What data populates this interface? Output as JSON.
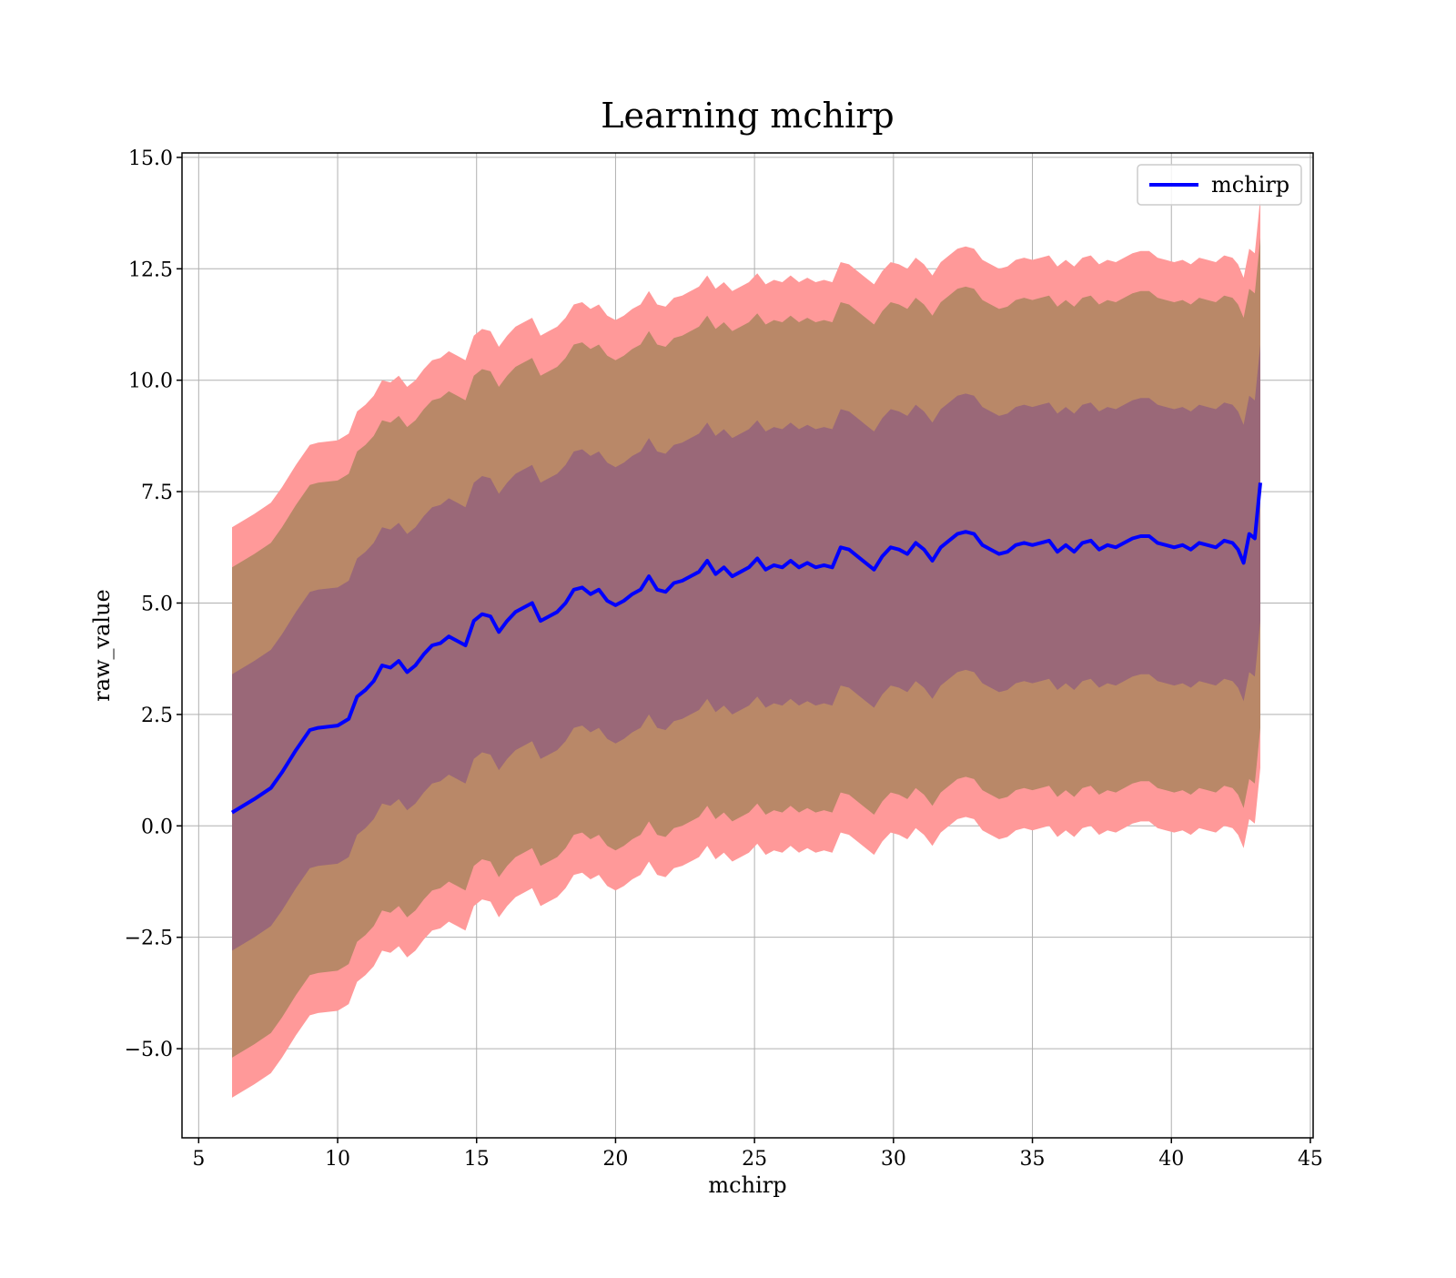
{
  "chart_data": {
    "type": "area",
    "title": "Learning mchirp",
    "xlabel": "mchirp",
    "ylabel": "raw_value",
    "xlim": [
      4.4,
      45.1
    ],
    "ylim": [
      -7.0,
      15.1
    ],
    "xticks": [
      5,
      10,
      15,
      20,
      25,
      30,
      35,
      40,
      45
    ],
    "xtick_labels": [
      "5",
      "10",
      "15",
      "20",
      "25",
      "30",
      "35",
      "40",
      "45"
    ],
    "yticks": [
      -5.0,
      -2.5,
      0.0,
      2.5,
      5.0,
      7.5,
      10.0,
      12.5,
      15.0
    ],
    "ytick_labels": [
      "−5.0",
      "−2.5",
      "0.0",
      "2.5",
      "5.0",
      "7.5",
      "10.0",
      "12.5",
      "15.0"
    ],
    "grid": true,
    "legend_position": "top-right",
    "colors": {
      "line": "#0000ff",
      "band_outer": "#ff9999",
      "band_middle": "#b98868",
      "band_inner": "#9a6878",
      "grid": "#b0b0b0"
    },
    "x": [
      6.2,
      7.0,
      7.6,
      8.0,
      8.5,
      9.0,
      9.3,
      10.0,
      10.4,
      10.7,
      11.0,
      11.3,
      11.6,
      11.9,
      12.2,
      12.5,
      12.8,
      13.1,
      13.4,
      13.7,
      14.0,
      14.3,
      14.6,
      14.9,
      15.2,
      15.5,
      15.8,
      16.1,
      16.4,
      16.7,
      17.0,
      17.3,
      17.6,
      17.9,
      18.2,
      18.5,
      18.8,
      19.1,
      19.4,
      19.7,
      20.0,
      20.3,
      20.6,
      20.9,
      21.2,
      21.5,
      21.8,
      22.1,
      22.4,
      22.7,
      23.0,
      23.3,
      23.6,
      23.9,
      24.2,
      24.5,
      24.8,
      25.1,
      25.4,
      25.7,
      26.0,
      26.3,
      26.6,
      26.9,
      27.2,
      27.5,
      27.8,
      28.1,
      28.4,
      28.7,
      29.0,
      29.3,
      29.6,
      29.9,
      30.2,
      30.5,
      30.8,
      31.1,
      31.4,
      31.7,
      32.0,
      32.3,
      32.6,
      32.9,
      33.2,
      33.5,
      33.8,
      34.1,
      34.4,
      34.7,
      35.0,
      35.3,
      35.6,
      35.9,
      36.2,
      36.5,
      36.8,
      37.1,
      37.4,
      37.7,
      38.0,
      38.3,
      38.6,
      38.9,
      39.2,
      39.5,
      39.8,
      40.1,
      40.4,
      40.7,
      41.0,
      41.3,
      41.6,
      41.9,
      42.2,
      42.4,
      42.6,
      42.8,
      43.0,
      43.2
    ],
    "series": [
      {
        "name": "mchirp",
        "values": [
          0.3,
          0.6,
          0.85,
          1.2,
          1.7,
          2.15,
          2.2,
          2.25,
          2.4,
          2.9,
          3.05,
          3.25,
          3.6,
          3.55,
          3.7,
          3.45,
          3.6,
          3.85,
          4.05,
          4.1,
          4.25,
          4.15,
          4.05,
          4.6,
          4.75,
          4.7,
          4.35,
          4.6,
          4.8,
          4.9,
          5.0,
          4.6,
          4.7,
          4.8,
          5.0,
          5.3,
          5.35,
          5.2,
          5.3,
          5.05,
          4.95,
          5.05,
          5.2,
          5.3,
          5.6,
          5.3,
          5.25,
          5.45,
          5.5,
          5.6,
          5.7,
          5.95,
          5.65,
          5.8,
          5.6,
          5.7,
          5.8,
          6.0,
          5.75,
          5.85,
          5.8,
          5.95,
          5.8,
          5.9,
          5.8,
          5.85,
          5.8,
          6.25,
          6.2,
          6.05,
          5.9,
          5.75,
          6.05,
          6.25,
          6.2,
          6.1,
          6.35,
          6.2,
          5.95,
          6.25,
          6.4,
          6.55,
          6.6,
          6.55,
          6.3,
          6.2,
          6.1,
          6.15,
          6.3,
          6.35,
          6.3,
          6.35,
          6.4,
          6.15,
          6.3,
          6.15,
          6.35,
          6.4,
          6.2,
          6.3,
          6.25,
          6.35,
          6.45,
          6.5,
          6.5,
          6.35,
          6.3,
          6.25,
          6.3,
          6.2,
          6.35,
          6.3,
          6.25,
          6.4,
          6.35,
          6.2,
          5.9,
          6.55,
          6.45,
          7.7
        ]
      }
    ],
    "band_offsets": {
      "inner": 3.1,
      "middle": 5.5,
      "outer": 6.4
    },
    "legend": [
      "mchirp"
    ]
  }
}
